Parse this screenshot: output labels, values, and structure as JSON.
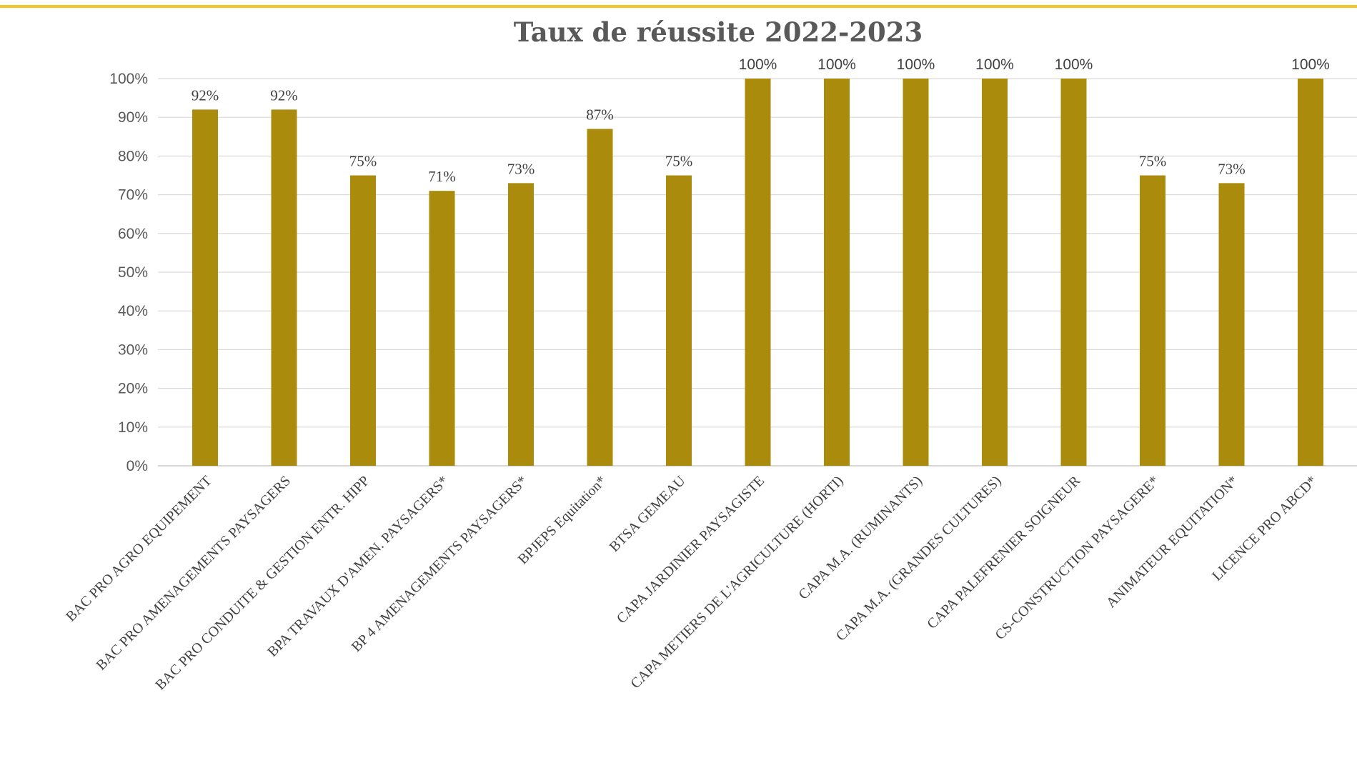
{
  "colors": {
    "bar": "#AA8B0B",
    "accent_rule": "#F5C52A",
    "grid": "#D9D9D9",
    "text": "#595959"
  },
  "chart_data": {
    "type": "bar",
    "title": "Taux de réussite 2022-2023",
    "xlabel": "",
    "ylabel": "",
    "ylim": [
      0,
      100
    ],
    "y_ticks": [
      "0%",
      "10%",
      "20%",
      "30%",
      "40%",
      "50%",
      "60%",
      "70%",
      "80%",
      "90%",
      "100%"
    ],
    "grid": true,
    "legend": "none",
    "categories": [
      "BAC PRO AGRO EQUIPEMENT",
      "BAC PRO AMENAGEMENTS PAYSAGERS",
      "BAC PRO CONDUITE & GESTION ENTR. HIPP",
      "BPA TRAVAUX D'AMEN. PAYSAGERS*",
      "BP 4 AMENAGEMENTS PAYSAGERS*",
      "BPJEPS Equitation*",
      "BTSA GEMEAU",
      "CAPA JARDINIER PAYSAGISTE",
      "CAPA METIERS DE L'AGRICULTURE (HORTI)",
      "CAPA M.A. (RUMINANTS)",
      "CAPA M.A. (GRANDES CULTURES)",
      "CAPA PALEFRENIER SOIGNEUR",
      "CS-CONSTRUCTION PAYSAGERE*",
      "ANIMATEUR EQUITATION*",
      "LICENCE PRO ABCD*"
    ],
    "values": [
      92,
      92,
      75,
      71,
      73,
      87,
      75,
      100,
      100,
      100,
      100,
      100,
      75,
      73,
      100
    ],
    "data_labels": [
      "92%",
      "92%",
      "75%",
      "71%",
      "73%",
      "87%",
      "75%",
      "100%",
      "100%",
      "100%",
      "100%",
      "100%",
      "75%",
      "73%",
      "100%"
    ]
  }
}
